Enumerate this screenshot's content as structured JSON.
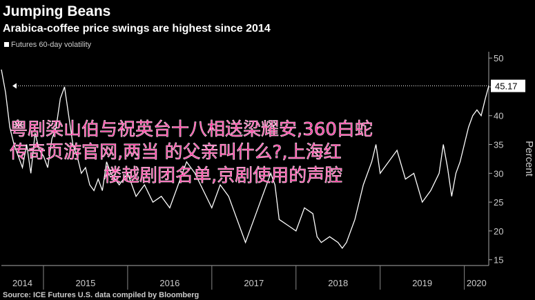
{
  "chart_data": {
    "type": "line",
    "title": "Jumping Beans",
    "subtitle": "Arabica-coffee price swings are highest since 2014",
    "y_label": "Percent",
    "source": "Source: ICE Futures U.S. data compiled by Bloomberg",
    "annotations": [
      "粤剧梁山伯与祝英台十八相送梁耀安,360白蛇",
      "传奇页游官网,两当  的父亲叫什么?,上海红",
      "楼越剧团名单,京剧使用的声腔"
    ],
    "x": [
      2014.5,
      2014.55,
      2014.6,
      2014.65,
      2014.7,
      2014.75,
      2014.8,
      2014.85,
      2014.9,
      2014.95,
      2015.0,
      2015.05,
      2015.1,
      2015.15,
      2015.2,
      2015.25,
      2015.3,
      2015.35,
      2015.4,
      2015.45,
      2015.5,
      2015.55,
      2015.6,
      2015.65,
      2015.7,
      2015.75,
      2015.8,
      2015.9,
      2016.0,
      2016.1,
      2016.2,
      2016.3,
      2016.4,
      2016.5,
      2016.6,
      2016.7,
      2016.8,
      2016.9,
      2017.0,
      2017.1,
      2017.2,
      2017.3,
      2017.4,
      2017.5,
      2017.6,
      2017.7,
      2017.75,
      2017.8,
      2017.9,
      2018.0,
      2018.1,
      2018.2,
      2018.25,
      2018.3,
      2018.4,
      2018.5,
      2018.55,
      2018.6,
      2018.7,
      2018.8,
      2018.9,
      2018.95,
      2019.0,
      2019.1,
      2019.2,
      2019.3,
      2019.4,
      2019.5,
      2019.6,
      2019.7,
      2019.75,
      2019.8,
      2019.85,
      2019.9,
      2019.95,
      2020.0,
      2020.05,
      2020.1,
      2020.15,
      2020.2,
      2020.25,
      2020.29
    ],
    "series": [
      {
        "name": "Futures 60-day volatility",
        "color": "#ffffff",
        "values": [
          48,
          44,
          38,
          35,
          33,
          31,
          35,
          30,
          37,
          34,
          33,
          31,
          36,
          38,
          43,
          45,
          40,
          35,
          33,
          30,
          31,
          28,
          27,
          29,
          27,
          32,
          30,
          28,
          30,
          26,
          28,
          25,
          26,
          24,
          28,
          32,
          30,
          27,
          24,
          28,
          26,
          22,
          18,
          22,
          26,
          30,
          28,
          22,
          21,
          20,
          24,
          23,
          19,
          18,
          19,
          18,
          17,
          18,
          22,
          28,
          32,
          35,
          30,
          32,
          34,
          29,
          30,
          25,
          27,
          30,
          35,
          31,
          26,
          30,
          32,
          35,
          38,
          40,
          41,
          40,
          43,
          45.17
        ]
      }
    ],
    "xlim": [
      2014.5,
      2020.29
    ],
    "xticks": [
      2014,
      2015,
      2016,
      2017,
      2018,
      2019,
      2020
    ],
    "ylim": [
      14,
      51.1
    ],
    "yticks": [
      15,
      20,
      25,
      30,
      35,
      40,
      45,
      50
    ]
  }
}
